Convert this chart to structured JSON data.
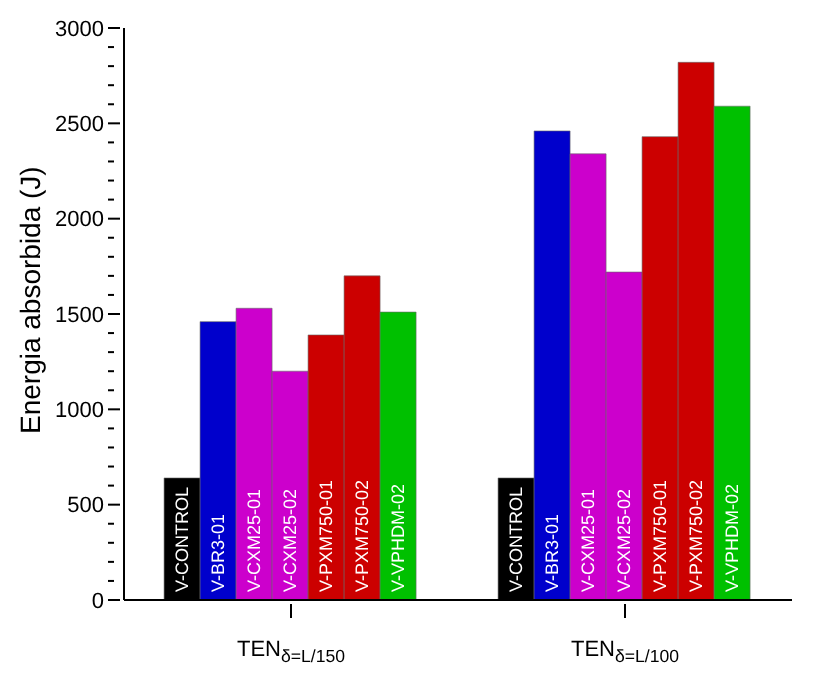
{
  "chart_data": {
    "type": "bar",
    "ylabel": "Energia absorbida (J)",
    "categories": [
      "TEN$_{δ=L/150}$",
      "TEN$_{δ=L/100}$"
    ],
    "series": [
      {
        "name": "V-CONTROL",
        "color": "#000000",
        "values": [
          640,
          640
        ]
      },
      {
        "name": "V-BR3-01",
        "color": "#0000cc",
        "values": [
          1460,
          2460
        ]
      },
      {
        "name": "V-CXM25-01",
        "color": "#cc00cc",
        "values": [
          1530,
          2340
        ]
      },
      {
        "name": "V-CXM25-02",
        "color": "#cc00cc",
        "values": [
          1200,
          1720
        ]
      },
      {
        "name": "V-PXM750-01",
        "color": "#cc0000",
        "values": [
          1390,
          2430
        ]
      },
      {
        "name": "V-PXM750-02",
        "color": "#cc0000",
        "values": [
          1700,
          2820
        ]
      },
      {
        "name": "V-VPHDM-02",
        "color": "#00c000",
        "values": [
          1510,
          2590
        ]
      }
    ],
    "ylim": [
      0,
      3000
    ],
    "yticks": [
      0,
      {
        "value": 100,
        "label": null
      },
      {
        "value": 200,
        "label": null
      },
      {
        "value": 300,
        "label": null
      },
      {
        "value": 400,
        "label": null
      },
      500,
      {
        "value": 600,
        "label": null
      },
      {
        "value": 700,
        "label": null
      },
      {
        "value": 800,
        "label": null
      },
      {
        "value": 900,
        "label": null
      },
      1000,
      {
        "value": 1100,
        "label": null
      },
      {
        "value": 1200,
        "label": null
      },
      {
        "value": 1300,
        "label": null
      },
      {
        "value": 1400,
        "label": null
      },
      1500,
      {
        "value": 1600,
        "label": null
      },
      {
        "value": 1700,
        "label": null
      },
      {
        "value": 1800,
        "label": null
      },
      {
        "value": 1900,
        "label": null
      },
      2000,
      {
        "value": 2100,
        "label": null
      },
      {
        "value": 2200,
        "label": null
      },
      {
        "value": 2300,
        "label": null
      },
      {
        "value": 2400,
        "label": null
      },
      2500,
      {
        "value": 2600,
        "label": null
      },
      {
        "value": 2700,
        "label": null
      },
      {
        "value": 2800,
        "label": null
      },
      {
        "value": 2900,
        "label": null
      },
      3000
    ],
    "grid": false,
    "legend": false
  }
}
